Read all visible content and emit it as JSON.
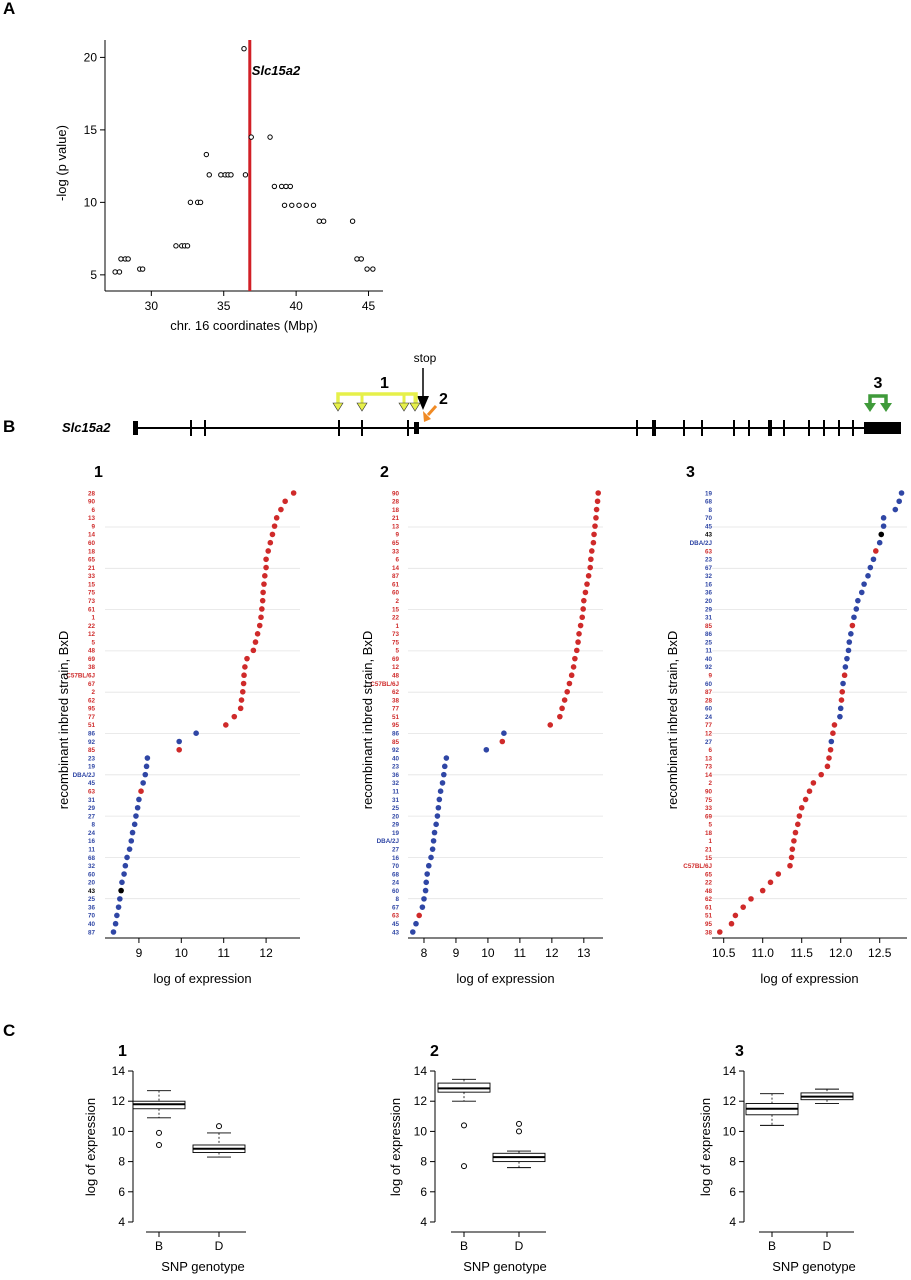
{
  "colors": {
    "red": "#cf2a2a",
    "blue": "#2f46a5",
    "black": "#000000",
    "vline": "#d11f26",
    "yellow": "#e6f04a",
    "orange": "#f08a24",
    "green": "#3f9a3a"
  },
  "panelA": {
    "letter": "A",
    "gene_label": "Slc15a2",
    "chart_data": {
      "type": "scatter",
      "xlabel": "chr. 16 coordinates (Mbp)",
      "ylabel": "-log (p value)",
      "xlim": [
        26.8,
        46.0
      ],
      "ylim": [
        4.3,
        21.2
      ],
      "xticks": [
        30,
        35,
        40,
        45
      ],
      "yticks": [
        5,
        10,
        15,
        20
      ],
      "vline_x": 36.8,
      "points": [
        [
          27.5,
          5.2
        ],
        [
          27.8,
          5.2
        ],
        [
          27.9,
          6.1
        ],
        [
          28.2,
          6.1
        ],
        [
          28.4,
          6.1
        ],
        [
          29.2,
          5.4
        ],
        [
          29.4,
          5.4
        ],
        [
          31.7,
          7.0
        ],
        [
          32.1,
          7.0
        ],
        [
          32.3,
          7.0
        ],
        [
          32.5,
          7.0
        ],
        [
          32.7,
          10.0
        ],
        [
          33.2,
          10.0
        ],
        [
          33.4,
          10.0
        ],
        [
          33.8,
          13.3
        ],
        [
          34.0,
          11.9
        ],
        [
          34.8,
          11.9
        ],
        [
          35.1,
          11.9
        ],
        [
          35.3,
          11.9
        ],
        [
          35.5,
          11.9
        ],
        [
          36.5,
          11.9
        ],
        [
          36.4,
          20.6
        ],
        [
          36.9,
          14.5
        ],
        [
          38.2,
          14.5
        ],
        [
          38.5,
          11.1
        ],
        [
          39.0,
          11.1
        ],
        [
          39.3,
          11.1
        ],
        [
          39.6,
          11.1
        ],
        [
          39.2,
          9.8
        ],
        [
          39.7,
          9.8
        ],
        [
          40.2,
          9.8
        ],
        [
          40.7,
          9.8
        ],
        [
          41.2,
          9.8
        ],
        [
          41.6,
          8.7
        ],
        [
          41.9,
          8.7
        ],
        [
          43.9,
          8.7
        ],
        [
          44.2,
          6.1
        ],
        [
          44.5,
          6.1
        ],
        [
          44.9,
          5.4
        ],
        [
          45.3,
          5.4
        ]
      ]
    }
  },
  "panelB": {
    "letter": "B",
    "gene_label": "Slc15a2",
    "stop_label": "stop",
    "marker_labels": [
      "1",
      "2",
      "3"
    ]
  },
  "dotplots": [
    {
      "num": "1",
      "chart_data": {
        "type": "scatter",
        "xlabel": "log of expression",
        "ylabel": "recombinant inbred strain, BxD",
        "xlim": [
          8.2,
          12.8
        ],
        "xticks": [
          9,
          10,
          11,
          12
        ],
        "strains": [
          [
            "28",
            12.65,
            "r"
          ],
          [
            "90",
            12.45,
            "r"
          ],
          [
            "6",
            12.35,
            "r"
          ],
          [
            "13",
            12.25,
            "r"
          ],
          [
            "9",
            12.2,
            "r"
          ],
          [
            "14",
            12.15,
            "r"
          ],
          [
            "60",
            12.1,
            "r"
          ],
          [
            "18",
            12.05,
            "r"
          ],
          [
            "65",
            12.0,
            "r"
          ],
          [
            "21",
            12.0,
            "r"
          ],
          [
            "33",
            11.97,
            "r"
          ],
          [
            "15",
            11.95,
            "r"
          ],
          [
            "75",
            11.93,
            "r"
          ],
          [
            "73",
            11.92,
            "r"
          ],
          [
            "61",
            11.9,
            "r"
          ],
          [
            "1",
            11.88,
            "r"
          ],
          [
            "22",
            11.85,
            "r"
          ],
          [
            "12",
            11.8,
            "r"
          ],
          [
            "5",
            11.75,
            "r"
          ],
          [
            "48",
            11.7,
            "r"
          ],
          [
            "69",
            11.55,
            "r"
          ],
          [
            "38",
            11.5,
            "r"
          ],
          [
            "C57BL/6J",
            11.48,
            "r"
          ],
          [
            "67",
            11.47,
            "r"
          ],
          [
            "2",
            11.45,
            "r"
          ],
          [
            "62",
            11.42,
            "r"
          ],
          [
            "95",
            11.4,
            "r"
          ],
          [
            "77",
            11.25,
            "r"
          ],
          [
            "51",
            11.05,
            "r"
          ],
          [
            "86",
            10.35,
            "b"
          ],
          [
            "92",
            9.95,
            "b"
          ],
          [
            "85",
            9.95,
            "r"
          ],
          [
            "23",
            9.2,
            "b"
          ],
          [
            "19",
            9.18,
            "b"
          ],
          [
            "DBA/2J",
            9.15,
            "b"
          ],
          [
            "45",
            9.1,
            "b"
          ],
          [
            "63",
            9.05,
            "r"
          ],
          [
            "31",
            9.0,
            "b"
          ],
          [
            "29",
            8.97,
            "b"
          ],
          [
            "27",
            8.93,
            "b"
          ],
          [
            "8",
            8.9,
            "b"
          ],
          [
            "24",
            8.85,
            "b"
          ],
          [
            "16",
            8.82,
            "b"
          ],
          [
            "11",
            8.78,
            "b"
          ],
          [
            "68",
            8.72,
            "b"
          ],
          [
            "32",
            8.68,
            "b"
          ],
          [
            "60",
            8.65,
            "b"
          ],
          [
            "20",
            8.6,
            "b"
          ],
          [
            "43",
            8.58,
            "k"
          ],
          [
            "25",
            8.55,
            "b"
          ],
          [
            "36",
            8.52,
            "b"
          ],
          [
            "70",
            8.48,
            "b"
          ],
          [
            "40",
            8.45,
            "b"
          ],
          [
            "87",
            8.4,
            "b"
          ]
        ]
      }
    },
    {
      "num": "2",
      "chart_data": {
        "type": "scatter",
        "xlabel": "log of expression",
        "ylabel": "recombinant inbred strain, BxD",
        "xlim": [
          7.5,
          13.6
        ],
        "xticks": [
          8,
          9,
          10,
          11,
          12,
          13
        ],
        "strains": [
          [
            "90",
            13.45,
            "r"
          ],
          [
            "28",
            13.43,
            "r"
          ],
          [
            "18",
            13.4,
            "r"
          ],
          [
            "21",
            13.38,
            "r"
          ],
          [
            "13",
            13.35,
            "r"
          ],
          [
            "9",
            13.32,
            "r"
          ],
          [
            "65",
            13.3,
            "r"
          ],
          [
            "33",
            13.25,
            "r"
          ],
          [
            "6",
            13.22,
            "r"
          ],
          [
            "14",
            13.2,
            "r"
          ],
          [
            "87",
            13.15,
            "r"
          ],
          [
            "61",
            13.1,
            "r"
          ],
          [
            "60",
            13.05,
            "r"
          ],
          [
            "2",
            13.0,
            "r"
          ],
          [
            "15",
            12.98,
            "r"
          ],
          [
            "22",
            12.95,
            "r"
          ],
          [
            "1",
            12.9,
            "r"
          ],
          [
            "73",
            12.85,
            "r"
          ],
          [
            "75",
            12.82,
            "r"
          ],
          [
            "5",
            12.78,
            "r"
          ],
          [
            "69",
            12.72,
            "r"
          ],
          [
            "12",
            12.68,
            "r"
          ],
          [
            "48",
            12.62,
            "r"
          ],
          [
            "C57BL/6J",
            12.55,
            "r"
          ],
          [
            "62",
            12.48,
            "r"
          ],
          [
            "38",
            12.4,
            "r"
          ],
          [
            "77",
            12.32,
            "r"
          ],
          [
            "51",
            12.25,
            "r"
          ],
          [
            "95",
            11.95,
            "r"
          ],
          [
            "86",
            10.5,
            "b"
          ],
          [
            "85",
            10.45,
            "r"
          ],
          [
            "92",
            9.95,
            "b"
          ],
          [
            "40",
            8.7,
            "b"
          ],
          [
            "23",
            8.65,
            "b"
          ],
          [
            "36",
            8.62,
            "b"
          ],
          [
            "32",
            8.58,
            "b"
          ],
          [
            "11",
            8.52,
            "b"
          ],
          [
            "31",
            8.48,
            "b"
          ],
          [
            "25",
            8.45,
            "b"
          ],
          [
            "20",
            8.42,
            "b"
          ],
          [
            "29",
            8.38,
            "b"
          ],
          [
            "19",
            8.33,
            "b"
          ],
          [
            "DBA/2J",
            8.3,
            "b"
          ],
          [
            "27",
            8.27,
            "b"
          ],
          [
            "16",
            8.22,
            "b"
          ],
          [
            "70",
            8.15,
            "b"
          ],
          [
            "68",
            8.1,
            "b"
          ],
          [
            "24",
            8.07,
            "b"
          ],
          [
            "60",
            8.05,
            "b"
          ],
          [
            "8",
            8.0,
            "b"
          ],
          [
            "67",
            7.95,
            "b"
          ],
          [
            "63",
            7.85,
            "r"
          ],
          [
            "45",
            7.75,
            "b"
          ],
          [
            "43",
            7.65,
            "b"
          ]
        ]
      }
    },
    {
      "num": "3",
      "chart_data": {
        "type": "scatter",
        "xlabel": "log of expression",
        "ylabel": "recombinant inbred strain, BxD",
        "xlim": [
          10.35,
          12.85
        ],
        "xticks": [
          10.5,
          11.0,
          11.5,
          12.0,
          12.5
        ],
        "strains": [
          [
            "19",
            12.78,
            "b"
          ],
          [
            "68",
            12.75,
            "b"
          ],
          [
            "8",
            12.7,
            "b"
          ],
          [
            "70",
            12.55,
            "b"
          ],
          [
            "45",
            12.55,
            "b"
          ],
          [
            "43",
            12.52,
            "k"
          ],
          [
            "DBA/2J",
            12.5,
            "b"
          ],
          [
            "63",
            12.45,
            "r"
          ],
          [
            "23",
            12.42,
            "b"
          ],
          [
            "67",
            12.38,
            "b"
          ],
          [
            "32",
            12.35,
            "b"
          ],
          [
            "16",
            12.3,
            "b"
          ],
          [
            "36",
            12.27,
            "b"
          ],
          [
            "20",
            12.22,
            "b"
          ],
          [
            "29",
            12.2,
            "b"
          ],
          [
            "31",
            12.17,
            "b"
          ],
          [
            "85",
            12.15,
            "r"
          ],
          [
            "86",
            12.13,
            "b"
          ],
          [
            "25",
            12.11,
            "b"
          ],
          [
            "11",
            12.1,
            "b"
          ],
          [
            "40",
            12.08,
            "b"
          ],
          [
            "92",
            12.06,
            "b"
          ],
          [
            "9",
            12.05,
            "r"
          ],
          [
            "60",
            12.03,
            "b"
          ],
          [
            "87",
            12.02,
            "r"
          ],
          [
            "28",
            12.01,
            "r"
          ],
          [
            "60",
            12.0,
            "b"
          ],
          [
            "24",
            11.99,
            "b"
          ],
          [
            "77",
            11.92,
            "r"
          ],
          [
            "12",
            11.9,
            "r"
          ],
          [
            "27",
            11.88,
            "b"
          ],
          [
            "6",
            11.87,
            "r"
          ],
          [
            "13",
            11.85,
            "r"
          ],
          [
            "73",
            11.83,
            "r"
          ],
          [
            "14",
            11.75,
            "r"
          ],
          [
            "2",
            11.65,
            "r"
          ],
          [
            "90",
            11.6,
            "r"
          ],
          [
            "75",
            11.55,
            "r"
          ],
          [
            "33",
            11.5,
            "r"
          ],
          [
            "69",
            11.47,
            "r"
          ],
          [
            "5",
            11.45,
            "r"
          ],
          [
            "18",
            11.42,
            "r"
          ],
          [
            "1",
            11.4,
            "r"
          ],
          [
            "21",
            11.38,
            "r"
          ],
          [
            "15",
            11.37,
            "r"
          ],
          [
            "C57BL/6J",
            11.35,
            "r"
          ],
          [
            "65",
            11.2,
            "r"
          ],
          [
            "22",
            11.1,
            "r"
          ],
          [
            "48",
            11.0,
            "r"
          ],
          [
            "62",
            10.85,
            "r"
          ],
          [
            "61",
            10.75,
            "r"
          ],
          [
            "51",
            10.65,
            "r"
          ],
          [
            "95",
            10.6,
            "r"
          ],
          [
            "38",
            10.45,
            "r"
          ]
        ]
      }
    }
  ],
  "panelC": {
    "letter": "C",
    "boxplots": [
      {
        "num": "1",
        "chart_data": {
          "type": "box",
          "xlabel": "SNP genotype",
          "ylabel": "log of expression",
          "ylim": [
            3.8,
            14.2
          ],
          "yticks": [
            4,
            6,
            8,
            10,
            12,
            14
          ],
          "categories": [
            "B",
            "D"
          ],
          "boxes": [
            {
              "min": 10.9,
              "q1": 11.5,
              "median": 11.8,
              "q3": 12.0,
              "max": 12.7,
              "outliers": [
                9.9,
                9.1
              ]
            },
            {
              "min": 8.3,
              "q1": 8.6,
              "median": 8.85,
              "q3": 9.1,
              "max": 9.9,
              "outliers": [
                10.35
              ]
            }
          ]
        }
      },
      {
        "num": "2",
        "chart_data": {
          "type": "box",
          "xlabel": "SNP genotype",
          "ylabel": "log of expression",
          "ylim": [
            3.8,
            14.2
          ],
          "yticks": [
            4,
            6,
            8,
            10,
            12,
            14
          ],
          "categories": [
            "B",
            "D"
          ],
          "boxes": [
            {
              "min": 12.0,
              "q1": 12.6,
              "median": 12.85,
              "q3": 13.2,
              "max": 13.45,
              "outliers": [
                10.4,
                7.7
              ]
            },
            {
              "min": 7.6,
              "q1": 8.0,
              "median": 8.3,
              "q3": 8.55,
              "max": 8.7,
              "outliers": [
                10.5,
                10.0
              ]
            }
          ]
        }
      },
      {
        "num": "3",
        "chart_data": {
          "type": "box",
          "xlabel": "SNP genotype",
          "ylabel": "log of expression",
          "ylim": [
            3.8,
            14.2
          ],
          "yticks": [
            4,
            6,
            8,
            10,
            12,
            14
          ],
          "categories": [
            "B",
            "D"
          ],
          "boxes": [
            {
              "min": 10.4,
              "q1": 11.1,
              "median": 11.5,
              "q3": 11.85,
              "max": 12.5,
              "outliers": []
            },
            {
              "min": 11.85,
              "q1": 12.1,
              "median": 12.3,
              "q3": 12.55,
              "max": 12.8,
              "outliers": []
            }
          ]
        }
      }
    ]
  }
}
